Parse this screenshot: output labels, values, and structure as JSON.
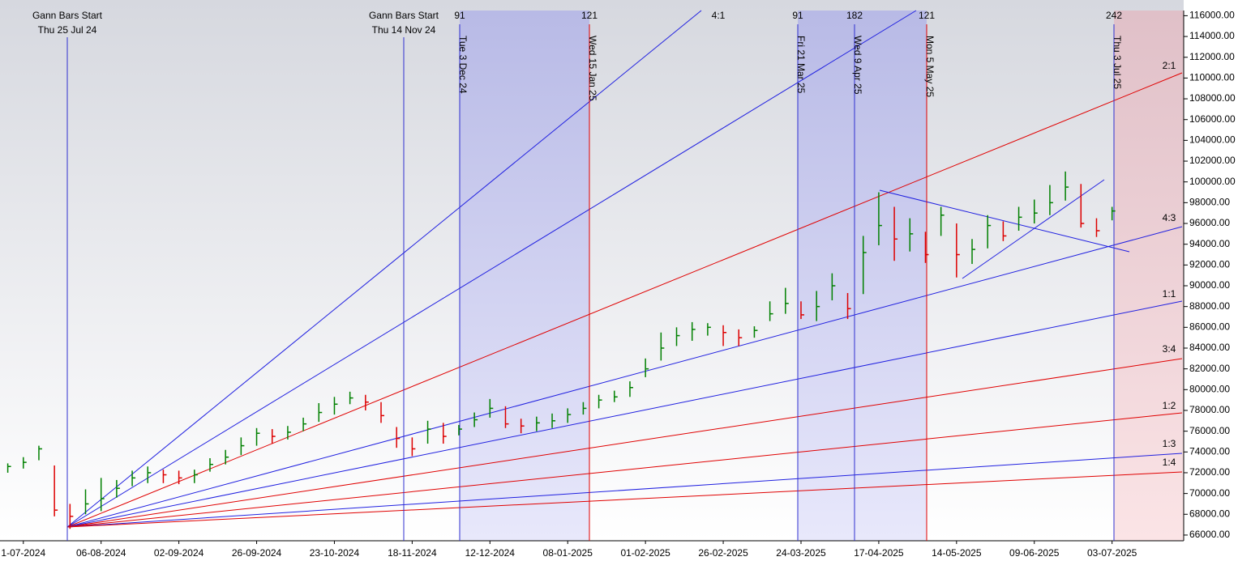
{
  "chart_data": {
    "type": "ohlc",
    "up_color": "#008000",
    "down_color": "#dd0000",
    "categories": [
      null,
      "1-07-2024",
      null,
      null,
      null,
      null,
      "06-08-2024",
      null,
      null,
      null,
      null,
      "02-09-2024",
      null,
      null,
      null,
      null,
      "26-09-2024",
      null,
      null,
      null,
      null,
      "23-10-2024",
      null,
      null,
      null,
      null,
      "18-11-2024",
      null,
      null,
      null,
      null,
      "12-12-2024",
      null,
      null,
      null,
      null,
      "08-01-2025",
      null,
      null,
      null,
      null,
      "01-02-2025",
      null,
      null,
      null,
      null,
      "26-02-2025",
      null,
      null,
      null,
      null,
      "24-03-2025",
      null,
      null,
      null,
      null,
      "17-04-2025",
      null,
      null,
      null,
      null,
      "14-05-2025",
      null,
      null,
      null,
      null,
      "09-06-2025",
      null,
      null,
      null,
      null,
      "03-07-2025",
      null,
      null,
      null,
      null
    ],
    "high": [
      72900,
      73500,
      74600,
      72700,
      69000,
      70400,
      71500,
      71300,
      72200,
      72600,
      72300,
      72200,
      72300,
      73400,
      74200,
      75400,
      76300,
      76200,
      76500,
      77300,
      78700,
      79300,
      79800,
      79500,
      78800,
      76400,
      75400,
      77000,
      76800,
      76600,
      77800,
      79100,
      78400,
      77200,
      77400,
      77700,
      78200,
      78800,
      79500,
      79900,
      80800,
      83000,
      85500,
      86000,
      86500,
      86400,
      86200,
      85800,
      86100,
      88500,
      89800,
      88500,
      89500,
      91200,
      89300,
      94800,
      99000,
      97600,
      96500,
      95200,
      97600,
      96000,
      94500,
      96800,
      96200,
      97600,
      98300,
      99700,
      101000,
      99800,
      96500,
      97600,
      null,
      null,
      null,
      null
    ],
    "low": [
      72000,
      72400,
      73200,
      67800,
      66600,
      68000,
      68300,
      69600,
      70700,
      71000,
      71000,
      70900,
      71000,
      72100,
      72800,
      73700,
      74600,
      74800,
      75200,
      76000,
      76900,
      77600,
      78600,
      78000,
      76800,
      74400,
      73600,
      74800,
      74800,
      75600,
      76400,
      77300,
      76300,
      75800,
      76000,
      76300,
      76800,
      77600,
      78200,
      78800,
      79300,
      81200,
      82800,
      84200,
      84700,
      85200,
      84200,
      84200,
      85000,
      86600,
      87300,
      86800,
      86600,
      88600,
      86800,
      89200,
      93900,
      92400,
      93300,
      92200,
      94800,
      90800,
      92100,
      93600,
      94300,
      95300,
      96000,
      96800,
      98200,
      95600,
      94700,
      96300,
      null,
      null,
      null,
      null
    ],
    "close": [
      72600,
      73000,
      74300,
      68400,
      67800,
      69000,
      69500,
      70500,
      71500,
      72000,
      71800,
      71500,
      71800,
      72800,
      73500,
      74600,
      75800,
      75500,
      75900,
      76700,
      77800,
      78600,
      79200,
      78800,
      77500,
      75300,
      74300,
      76200,
      75500,
      76200,
      77100,
      78200,
      76700,
      76500,
      76800,
      77000,
      77600,
      78200,
      79000,
      79300,
      80200,
      82000,
      84000,
      85200,
      85800,
      86000,
      85500,
      85000,
      85700,
      87300,
      88300,
      87200,
      88000,
      90000,
      87800,
      93200,
      95800,
      94500,
      95000,
      93000,
      96800,
      93000,
      93500,
      95800,
      94800,
      96600,
      97000,
      98000,
      99500,
      96000,
      95300,
      97200,
      null,
      null,
      null,
      null
    ],
    "ylim": [
      65450,
      116500
    ],
    "yticks": [
      {
        "value": 66000,
        "label": "66000.00"
      },
      {
        "value": 68000,
        "label": "68000.00"
      },
      {
        "value": 70000,
        "label": "70000.00"
      },
      {
        "value": 72000,
        "label": "72000.00"
      },
      {
        "value": 74000,
        "label": "74000.00"
      },
      {
        "value": 76000,
        "label": "76000.00"
      },
      {
        "value": 78000,
        "label": "78000.00"
      },
      {
        "value": 80000,
        "label": "80000.00"
      },
      {
        "value": 82000,
        "label": "82000.00"
      },
      {
        "value": 84000,
        "label": "84000.00"
      },
      {
        "value": 86000,
        "label": "86000.00"
      },
      {
        "value": 88000,
        "label": "88000.00"
      },
      {
        "value": 90000,
        "label": "90000.00"
      },
      {
        "value": 92000,
        "label": "92000.00"
      },
      {
        "value": 94000,
        "label": "94000.00"
      },
      {
        "value": 96000,
        "label": "96000.00"
      },
      {
        "value": 98000,
        "label": "98000.00"
      },
      {
        "value": 100000,
        "label": "100000.00"
      },
      {
        "value": 102000,
        "label": "102000.00"
      },
      {
        "value": 104000,
        "label": "104000.00"
      },
      {
        "value": 106000,
        "label": "106000.00"
      },
      {
        "value": 108000,
        "label": "108000.00"
      },
      {
        "value": 110000,
        "label": "110000.00"
      },
      {
        "value": 112000,
        "label": "112000.00"
      },
      {
        "value": 114000,
        "label": "114000.00"
      },
      {
        "value": 116000,
        "label": "116000.00"
      }
    ],
    "gann_starts": [
      {
        "title": "Gann Bars Start",
        "date": "Thu 25 Jul 24"
      },
      {
        "title": "Gann Bars Start",
        "date": "Thu 14 Nov 24"
      }
    ],
    "time_markers": [
      {
        "date": "Tue 3 Dec 24",
        "count": 91,
        "color": "#3030d0"
      },
      {
        "date": "Wed 15 Jan 25",
        "count": 121,
        "color": "#e00000"
      },
      {
        "date": "Fri 21 Mar 25",
        "count": 91,
        "color": "#3030d0"
      },
      {
        "date": "Wed 9 Apr 25",
        "count": 182,
        "color": "#3030d0"
      },
      {
        "date": "Mon 5 May 25",
        "count": 121,
        "color": "#e00000"
      },
      {
        "date": "Thu 3 Jul 25",
        "count": 242,
        "color": "#3030d0"
      }
    ],
    "gann_fan": [
      {
        "label": "4:1",
        "color": "#2020e0"
      },
      {
        "label": "2:1",
        "color": "#e00000"
      },
      {
        "label": "4:3",
        "color": "#2020e0"
      },
      {
        "label": "1:1",
        "color": "#2020e0"
      },
      {
        "label": "3:4",
        "color": "#e00000"
      },
      {
        "label": "1:2",
        "color": "#e00000"
      },
      {
        "label": "1:3",
        "color": "#2020e0"
      },
      {
        "label": "1:4",
        "color": "#e00000"
      }
    ]
  }
}
